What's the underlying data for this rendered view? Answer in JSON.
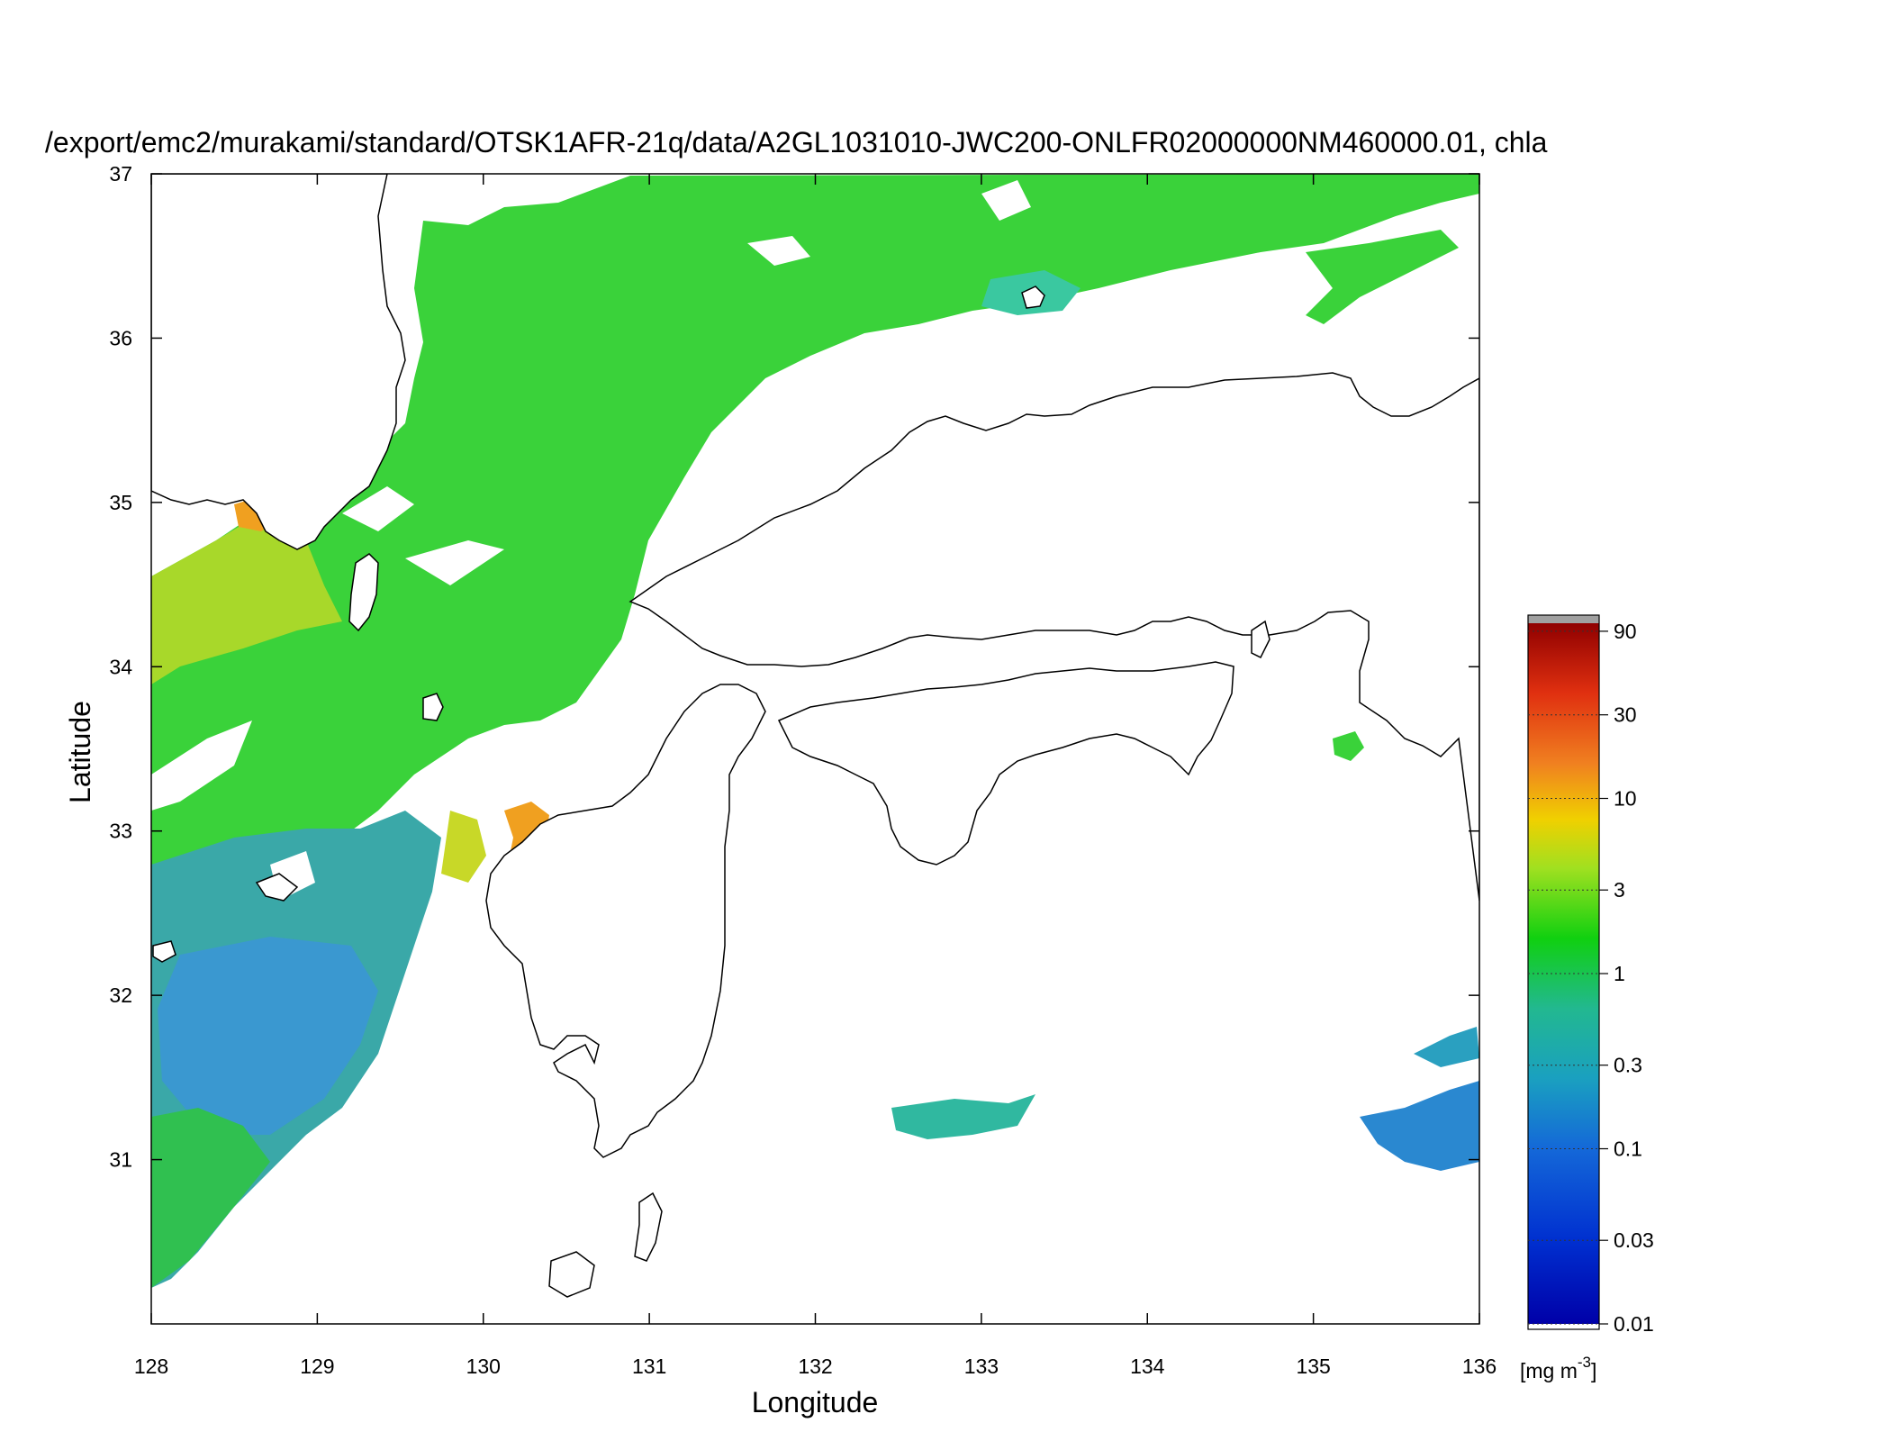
{
  "title": "/export/emc2/murakami/standard/OTSK1AFR-21q/data/A2GL1031010-JWC200-ONLFR02000000NM460000.01, chla",
  "x_axis": {
    "label": "Longitude",
    "ticks": [
      "128",
      "129",
      "130",
      "131",
      "132",
      "133",
      "134",
      "135",
      "136"
    ],
    "range": [
      128,
      136
    ]
  },
  "y_axis": {
    "label": "Latitude",
    "ticks": [
      "31",
      "32",
      "33",
      "34",
      "35",
      "36",
      "37"
    ],
    "range": [
      30,
      37
    ]
  },
  "colorbar": {
    "scale": "log",
    "range": [
      0.01,
      100
    ],
    "ticks": [
      "0.01",
      "0.03",
      "0.1",
      "0.3",
      "1",
      "3",
      "10",
      "30",
      "90"
    ],
    "tick_values": [
      0.01,
      0.03,
      0.1,
      0.3,
      1,
      3,
      10,
      30,
      90
    ],
    "unit_prefix": "[mg m",
    "unit_exp": "-3",
    "unit_suffix": "]",
    "colors": [
      "#0000a8",
      "#0050e0",
      "#1e90d0",
      "#20b090",
      "#10d010",
      "#a0e020",
      "#f0d000",
      "#f08020",
      "#e04010",
      "#900000"
    ],
    "cap_color": "#a0a0a0"
  },
  "colors": {
    "land_outline": "#000000",
    "no_data": "#ffffff",
    "low_chla": "#3a9ad6",
    "mid_chla": "#22c43a",
    "high_chla": "#f0a020"
  }
}
